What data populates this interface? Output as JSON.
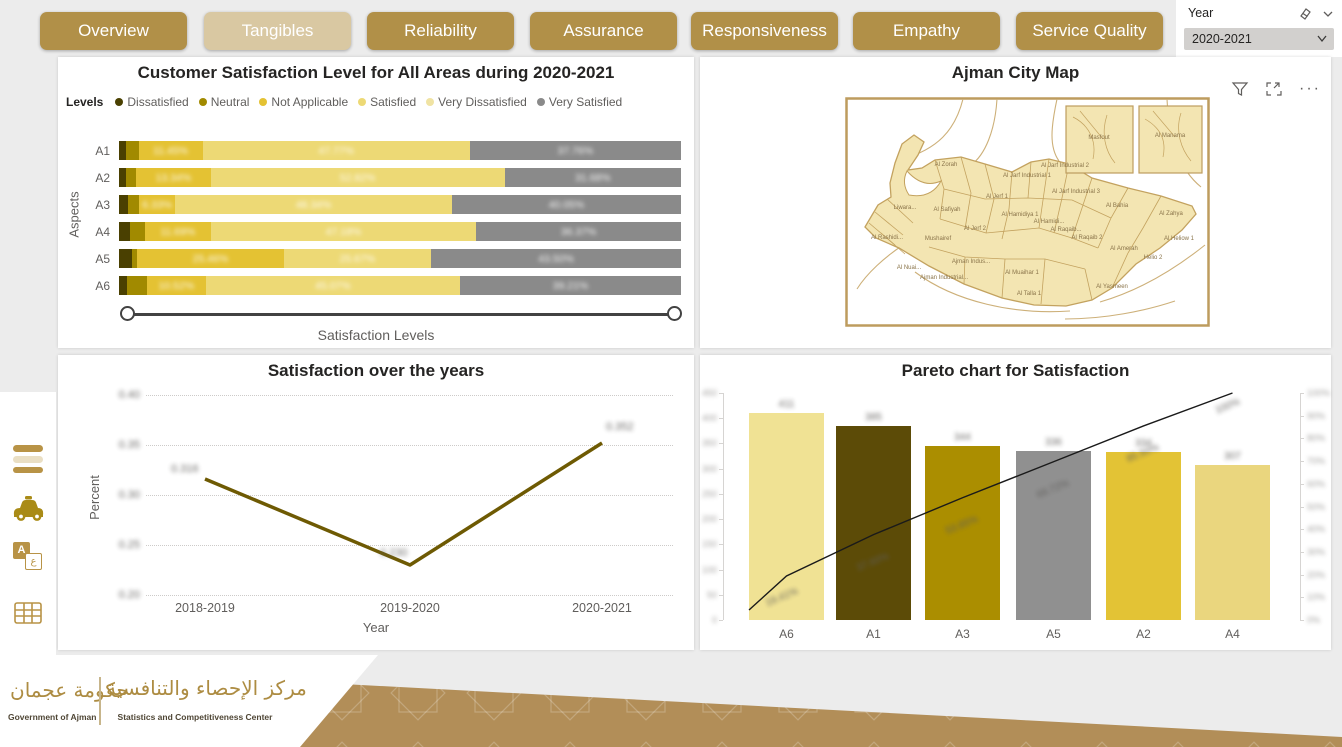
{
  "page": {
    "background": "#ECECEC",
    "accent_gold": "#B19048"
  },
  "tabs": [
    {
      "label": "Overview",
      "active": false
    },
    {
      "label": "Tangibles",
      "active": true
    },
    {
      "label": "Reliability",
      "active": false
    },
    {
      "label": "Assurance",
      "active": false
    },
    {
      "label": "Responsiveness",
      "active": false
    },
    {
      "label": "Empathy",
      "active": false
    },
    {
      "label": "Service Quality",
      "active": false
    }
  ],
  "year_filter": {
    "title": "Year",
    "selected": "2020-2021"
  },
  "cards": {
    "levels": {
      "title": "Customer Satisfaction Level for All Areas during 2020-2021",
      "legend_title": "Levels",
      "y_axis": "Aspects",
      "x_axis": "Satisfaction Levels"
    },
    "map": {
      "title": "Ajman City Map",
      "regions": [
        "Al Zorah",
        "Al Jarf Industrial 1",
        "Al Jarf Industrial 2",
        "Al Jarf Industrial 3",
        "Al Jerf 1",
        "Al Jerf 2",
        "Al Hamidiya 1",
        "Al Hamidi...",
        "Al Raqaib...",
        "Al Raqaib 2",
        "Al Bahia",
        "Al Zahya",
        "Al Heliow 1",
        "Helio 2",
        "Al Amerah",
        "Al Yasmeen",
        "Al Talla 1",
        "Al Muaihar 1",
        "Ajman Indus...",
        "Ajman Industrial...",
        "Al Safiyah",
        "Mushairef",
        "Al Rashidi...",
        "Al Nuai...",
        "Liwara...",
        "Masfout",
        "Al Manama"
      ]
    },
    "line": {
      "title": "Satisfaction over the years",
      "x_axis": "Year",
      "y_axis": "Percent"
    },
    "pareto": {
      "title": "Pareto chart for Satisfaction"
    }
  },
  "footer": {
    "gov_ar": "حكومة عجمان",
    "gov_en": "Government of Ajman",
    "center_ar": "مركز الإحصاء والتنافسية",
    "center_en": "Statistics and Competitiveness Center"
  },
  "chart_data": [
    {
      "id": "satisfaction_levels",
      "type": "bar",
      "orientation": "horizontal-stacked",
      "title": "Customer Satisfaction Level for All Areas during 2020-2021",
      "xlabel": "Satisfaction Levels",
      "ylabel": "Aspects",
      "categories": [
        "A1",
        "A2",
        "A3",
        "A4",
        "A5",
        "A6"
      ],
      "series": [
        {
          "name": "Dissatisfied",
          "color": "#4A4001",
          "values": [
            1.3,
            1.2,
            1.5,
            2.0,
            2.3,
            1.5
          ]
        },
        {
          "name": "Neutral",
          "color": "#A18A00",
          "values": [
            2.2,
            1.9,
            2.0,
            2.6,
            0.9,
            3.4
          ]
        },
        {
          "name": "Not Applicable",
          "color": "#E4C233",
          "values": [
            11.45,
            13.34,
            6.33,
            11.69,
            25.46,
            10.52
          ]
        },
        {
          "name": "Satisfied",
          "color": "#EDD975",
          "values": [
            47.77,
            52.82,
            48.34,
            47.18,
            25.67,
            45.07
          ]
        },
        {
          "name": "Very Dissatisfied",
          "color": "#F0E3A3",
          "values": [
            0,
            0,
            0,
            0,
            0,
            0
          ]
        },
        {
          "name": "Very Satisfied",
          "color": "#8A8A8A",
          "values": [
            37.76,
            31.68,
            40.05,
            36.37,
            43.5,
            39.21
          ]
        }
      ],
      "data_labels_blurred": true,
      "legend_position": "top"
    },
    {
      "id": "satisfaction_years",
      "type": "line",
      "title": "Satisfaction over the years",
      "xlabel": "Year",
      "ylabel": "Percent",
      "x": [
        "2018-2019",
        "2019-2020",
        "2020-2021"
      ],
      "values": [
        0.316,
        0.23,
        0.352
      ],
      "point_labels": [
        "0.316",
        "0.230",
        "0.352"
      ],
      "yticks": [
        "0.40",
        "0.35",
        "0.30",
        "0.25",
        "0.20"
      ],
      "ylim": [
        0.2,
        0.4
      ],
      "line_color": "#6E5A03",
      "grid": "dotted",
      "data_labels_blurred": true
    },
    {
      "id": "pareto_satisfaction",
      "type": "bar",
      "title": "Pareto chart for Satisfaction",
      "categories": [
        "A6",
        "A1",
        "A3",
        "A5",
        "A2",
        "A4"
      ],
      "values": [
        411,
        385,
        344,
        336,
        334,
        307
      ],
      "value_labels": [
        "411",
        "385",
        "344",
        "336",
        "334",
        "307"
      ],
      "bar_colors": [
        "#F0E294",
        "#5C4B07",
        "#AB8E00",
        "#909090",
        "#E3C335",
        "#EAD67E"
      ],
      "cumulative_pct": [
        19.41,
        37.6,
        53.85,
        69.72,
        85.5,
        100
      ],
      "cumulative_labels": [
        "19.41%",
        "37.60%",
        "53.85%",
        "69.72%",
        "85.50%",
        "100%"
      ],
      "left_ticks": [
        "450",
        "400",
        "350",
        "300",
        "250",
        "200",
        "150",
        "100",
        "50",
        "0"
      ],
      "right_ticks": [
        "100%",
        "90%",
        "80%",
        "70%",
        "60%",
        "50%",
        "40%",
        "30%",
        "20%",
        "10%",
        "0%"
      ],
      "ylim": [
        0,
        450
      ],
      "line_color": "#1a1a1a",
      "data_labels_blurred": true
    }
  ]
}
